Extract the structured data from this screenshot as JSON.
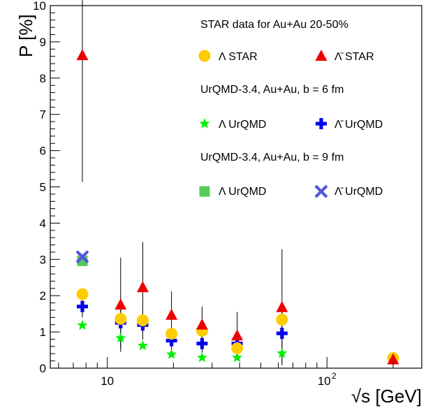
{
  "chart_data": {
    "type": "scatter",
    "xlabel": "√s [GeV]",
    "ylabel": "P [%]",
    "x_scale": "log",
    "xlim": [
      5.5,
      270
    ],
    "ylim": [
      0,
      10
    ],
    "y_ticks": [
      "0",
      "1",
      "2",
      "3",
      "4",
      "5",
      "6",
      "7",
      "8",
      "9",
      "10"
    ],
    "x_ticks": [
      {
        "value": 10,
        "label": "10",
        "exp": ""
      },
      {
        "value": 100,
        "label": "10",
        "exp": "2"
      }
    ],
    "grid": false,
    "legend_position": "top-right",
    "legend_headers": [
      "STAR data for Au+Au 20-50%",
      "UrQMD-3.4, Au+Au, b = 6 fm",
      "UrQMD-3.4, Au+Au, b = 9 fm"
    ],
    "series": [
      {
        "name": "Λ STAR",
        "marker": "circle",
        "color": "#ffcc00",
        "points": [
          {
            "x": 7.7,
            "y": 2.04,
            "err": 0.0
          },
          {
            "x": 11.5,
            "y": 1.36,
            "err": 0.0
          },
          {
            "x": 14.5,
            "y": 1.32,
            "err": 0.0
          },
          {
            "x": 19.6,
            "y": 0.95,
            "err": 0.0
          },
          {
            "x": 27,
            "y": 1.03,
            "err": 0.0
          },
          {
            "x": 39,
            "y": 0.55,
            "err": 0.0
          },
          {
            "x": 62.4,
            "y": 1.34,
            "err": 0.0
          },
          {
            "x": 200,
            "y": 0.28,
            "err": 0.0
          }
        ]
      },
      {
        "name": "Λ̄ STAR",
        "marker": "triangle",
        "color": "#ee0000",
        "points": [
          {
            "x": 7.7,
            "y": 8.63,
            "err": 3.5
          },
          {
            "x": 11.5,
            "y": 1.75,
            "err": 1.3
          },
          {
            "x": 14.5,
            "y": 2.23,
            "err": 1.25
          },
          {
            "x": 19.6,
            "y": 1.47,
            "err": 0.65
          },
          {
            "x": 27,
            "y": 1.2,
            "err": 0.5
          },
          {
            "x": 39,
            "y": 0.9,
            "err": 0.65
          },
          {
            "x": 62.4,
            "y": 1.68,
            "err": 1.6
          },
          {
            "x": 200,
            "y": 0.24,
            "err": 0.0
          }
        ]
      },
      {
        "name": "Λ UrQMD",
        "group": "b = 6 fm",
        "marker": "star",
        "color": "#00ee00",
        "points": [
          {
            "x": 7.7,
            "y": 1.18,
            "err": 0.0
          },
          {
            "x": 11.5,
            "y": 0.83,
            "err": 0.0
          },
          {
            "x": 14.5,
            "y": 0.62,
            "err": 0.0
          },
          {
            "x": 19.6,
            "y": 0.38,
            "err": 0.0
          },
          {
            "x": 27,
            "y": 0.29,
            "err": 0.0
          },
          {
            "x": 39,
            "y": 0.29,
            "err": 0.0
          },
          {
            "x": 62.4,
            "y": 0.41,
            "err": 0.0
          }
        ]
      },
      {
        "name": "Λ̄ UrQMD",
        "group": "b = 6 fm",
        "marker": "cross",
        "color": "#0000ee",
        "points": [
          {
            "x": 7.7,
            "y": 1.7,
            "err": 0.3
          },
          {
            "x": 11.5,
            "y": 1.25,
            "err": 0.7
          },
          {
            "x": 14.5,
            "y": 1.19,
            "err": 0.4
          },
          {
            "x": 19.6,
            "y": 0.76,
            "err": 0.25
          },
          {
            "x": 27,
            "y": 0.68,
            "err": 0.25
          },
          {
            "x": 39,
            "y": 0.68,
            "err": 0.25
          },
          {
            "x": 62.4,
            "y": 0.96,
            "err": 0.8
          }
        ]
      },
      {
        "name": "Λ UrQMD",
        "group": "b = 9 fm",
        "marker": "square",
        "color": "#55cc55",
        "points": [
          {
            "x": 7.7,
            "y": 2.96,
            "err": 0.0
          }
        ]
      },
      {
        "name": "Λ̄ UrQMD",
        "group": "b = 9 fm",
        "marker": "xcross",
        "color": "#5555dd",
        "points": [
          {
            "x": 7.7,
            "y": 3.07,
            "err": 0.0
          }
        ]
      }
    ]
  }
}
